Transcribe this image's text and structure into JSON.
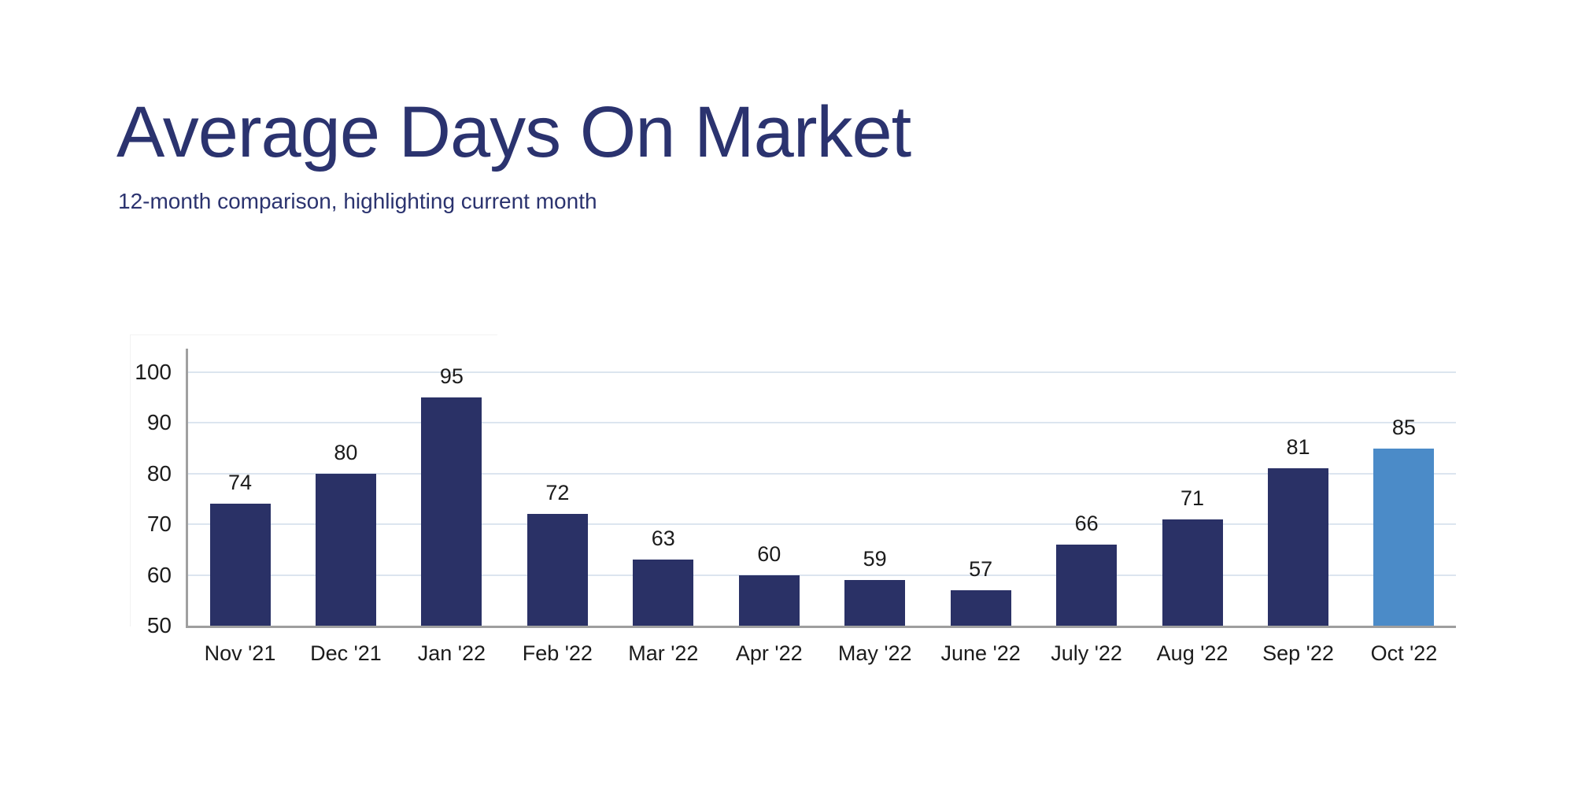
{
  "chart_data": {
    "type": "bar",
    "title": "Average Days On Market",
    "subtitle": "12-month comparison, highlighting current month",
    "categories": [
      "Nov '21",
      "Dec '21",
      "Jan '22",
      "Feb '22",
      "Mar '22",
      "Apr '22",
      "May '22",
      "June '22",
      "July '22",
      "Aug '22",
      "Sep '22",
      "Oct '22"
    ],
    "values": [
      74,
      80,
      95,
      72,
      63,
      60,
      59,
      57,
      66,
      71,
      81,
      85
    ],
    "highlight_index": 11,
    "highlight_category": "Oct '22",
    "yticks": [
      50,
      60,
      70,
      80,
      90,
      100
    ],
    "ylim": [
      50,
      105
    ],
    "xlabel": "",
    "ylabel": "",
    "grid": true,
    "legend": false,
    "value_labels_shown": true,
    "colors": {
      "bar": "#2a3166",
      "highlight_bar": "#4b8bc8",
      "title_text": "#2b336f",
      "axis": "#9e9e9e",
      "gridline": "#dce5ef",
      "label_text": "#1b1b1b"
    }
  }
}
